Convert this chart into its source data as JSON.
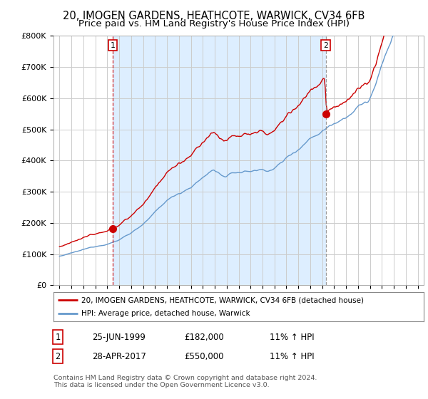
{
  "title": "20, IMOGEN GARDENS, HEATHCOTE, WARWICK, CV34 6FB",
  "subtitle": "Price paid vs. HM Land Registry's House Price Index (HPI)",
  "title_fontsize": 10.5,
  "subtitle_fontsize": 9.5,
  "ylim": [
    0,
    800000
  ],
  "yticks": [
    0,
    100000,
    200000,
    300000,
    400000,
    500000,
    600000,
    700000,
    800000
  ],
  "ytick_labels": [
    "£0",
    "£100K",
    "£200K",
    "£300K",
    "£400K",
    "£500K",
    "£600K",
    "£700K",
    "£800K"
  ],
  "background_color": "#ffffff",
  "plot_bg_color": "#ffffff",
  "grid_color": "#cccccc",
  "shade_color": "#ddeeff",
  "legend_entry1": "20, IMOGEN GARDENS, HEATHCOTE, WARWICK, CV34 6FB (detached house)",
  "legend_entry2": "HPI: Average price, detached house, Warwick",
  "sale1_year": 1999.47,
  "sale1_value": 182000,
  "sale2_year": 2017.29,
  "sale2_value": 550000,
  "sale1_label": "1",
  "sale2_label": "2",
  "footer_line1": "Contains HM Land Registry data © Crown copyright and database right 2024.",
  "footer_line2": "This data is licensed under the Open Government Licence v3.0.",
  "table_rows": [
    {
      "num": "1",
      "date": "25-JUN-1999",
      "price": "£182,000",
      "hpi": "11% ↑ HPI"
    },
    {
      "num": "2",
      "date": "28-APR-2017",
      "price": "£550,000",
      "hpi": "11% ↑ HPI"
    }
  ],
  "line_color_red": "#cc0000",
  "line_color_blue": "#6699cc",
  "vline1_color": "#cc0000",
  "vline1_style": "--",
  "vline2_color": "#888888",
  "vline2_style": "--",
  "marker_color": "#cc0000",
  "xmin": 1995,
  "xmax": 2025
}
